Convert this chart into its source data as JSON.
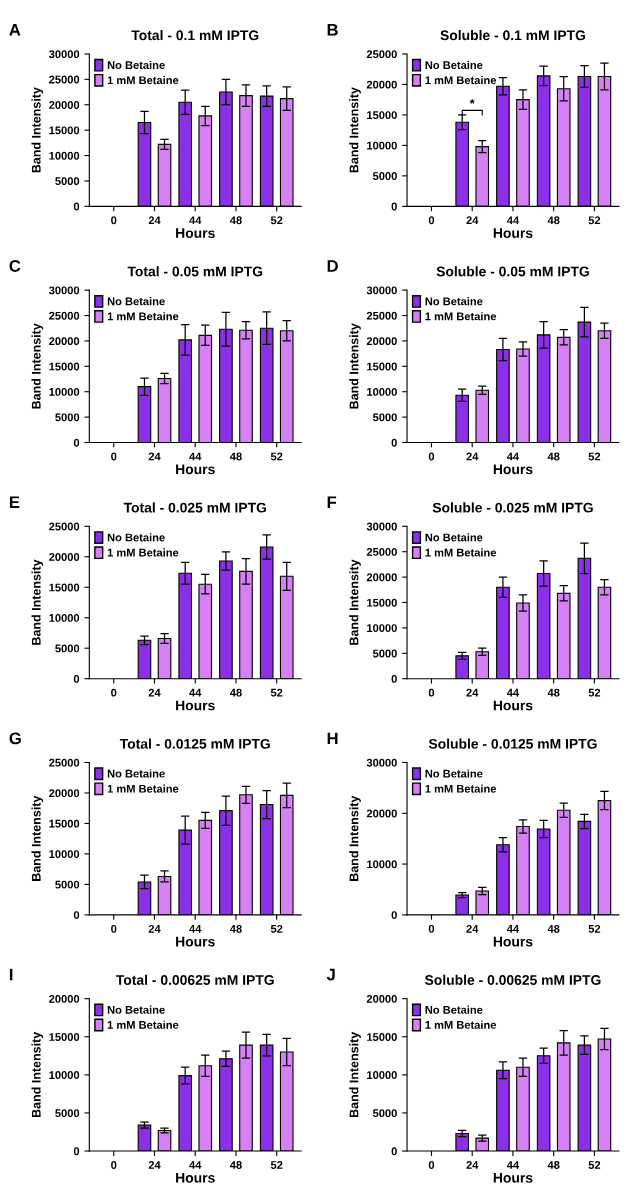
{
  "chart_data": [
    {
      "type": "bar",
      "title": "Total - 0.1 mM IPTG",
      "xlabel": "Hours",
      "ylabel": "Band Intensity",
      "annotations": [
        "A"
      ],
      "categories": [
        "0",
        "24",
        "44",
        "48",
        "52"
      ],
      "ylim": [
        0,
        30000
      ],
      "yticks": [
        0,
        5000,
        10000,
        15000,
        20000,
        25000,
        30000
      ],
      "legend": "top left",
      "grid": false,
      "series": [
        {
          "name": "No Betaine",
          "color": "#8b2fe8",
          "values": [
            null,
            16500,
            20500,
            22500,
            21700
          ],
          "errors": [
            null,
            2200,
            2400,
            2500,
            2000
          ]
        },
        {
          "name": "1 mM Betaine",
          "color": "#d580f5",
          "values": [
            null,
            12200,
            17800,
            21800,
            21200
          ],
          "errors": [
            null,
            1000,
            1900,
            2100,
            2300
          ]
        }
      ]
    },
    {
      "type": "bar",
      "title": "Soluble - 0.1 mM IPTG",
      "xlabel": "Hours",
      "ylabel": "Band Intensity",
      "annotations": [
        "B",
        "*"
      ],
      "categories": [
        "0",
        "24",
        "44",
        "48",
        "52"
      ],
      "ylim": [
        0,
        25000
      ],
      "yticks": [
        0,
        5000,
        10000,
        15000,
        20000,
        25000
      ],
      "legend": "top left",
      "grid": false,
      "series": [
        {
          "name": "No Betaine",
          "color": "#8b2fe8",
          "values": [
            null,
            13800,
            19700,
            21400,
            21300
          ],
          "errors": [
            null,
            1200,
            1400,
            1600,
            1800
          ]
        },
        {
          "name": "1 mM Betaine",
          "color": "#d580f5",
          "values": [
            null,
            9800,
            17500,
            19300,
            21300
          ],
          "errors": [
            null,
            1000,
            1600,
            2000,
            2200
          ]
        }
      ]
    },
    {
      "type": "bar",
      "title": "Total - 0.05 mM IPTG",
      "xlabel": "Hours",
      "ylabel": "Band Intensity",
      "annotations": [
        "C"
      ],
      "categories": [
        "0",
        "24",
        "44",
        "48",
        "52"
      ],
      "ylim": [
        0,
        30000
      ],
      "yticks": [
        0,
        5000,
        10000,
        15000,
        20000,
        25000,
        30000
      ],
      "legend": "top left",
      "grid": false,
      "series": [
        {
          "name": "No Betaine",
          "color": "#8b2fe8",
          "values": [
            null,
            11000,
            20200,
            22300,
            22500
          ],
          "errors": [
            null,
            1700,
            3000,
            3300,
            3200
          ]
        },
        {
          "name": "1 mM Betaine",
          "color": "#d580f5",
          "values": [
            null,
            12600,
            21100,
            22100,
            22000
          ],
          "errors": [
            null,
            1000,
            2000,
            1700,
            2000
          ]
        }
      ]
    },
    {
      "type": "bar",
      "title": "Soluble - 0.05 mM IPTG",
      "xlabel": "Hours",
      "ylabel": "Band Intensity",
      "annotations": [
        "D"
      ],
      "categories": [
        "0",
        "24",
        "44",
        "48",
        "52"
      ],
      "ylim": [
        0,
        30000
      ],
      "yticks": [
        0,
        5000,
        10000,
        15000,
        20000,
        25000,
        30000
      ],
      "legend": "top left",
      "grid": false,
      "series": [
        {
          "name": "No Betaine",
          "color": "#8b2fe8",
          "values": [
            null,
            9300,
            18300,
            21200,
            23700
          ],
          "errors": [
            null,
            1200,
            2200,
            2600,
            2900
          ]
        },
        {
          "name": "1 mM Betaine",
          "color": "#d580f5",
          "values": [
            null,
            10300,
            18400,
            20700,
            22000
          ],
          "errors": [
            null,
            800,
            1400,
            1500,
            1500
          ]
        }
      ]
    },
    {
      "type": "bar",
      "title": "Total - 0.025 mM IPTG",
      "xlabel": "Hours",
      "ylabel": "Band Intensity",
      "annotations": [
        "E"
      ],
      "categories": [
        "0",
        "24",
        "44",
        "48",
        "52"
      ],
      "ylim": [
        0,
        25000
      ],
      "yticks": [
        0,
        5000,
        10000,
        15000,
        20000,
        25000
      ],
      "legend": "top left",
      "grid": false,
      "series": [
        {
          "name": "No Betaine",
          "color": "#8b2fe8",
          "values": [
            null,
            6300,
            17300,
            19300,
            21600
          ],
          "errors": [
            null,
            700,
            1800,
            1500,
            2000
          ]
        },
        {
          "name": "1 mM Betaine",
          "color": "#d580f5",
          "values": [
            null,
            6600,
            15500,
            17600,
            16800
          ],
          "errors": [
            null,
            800,
            1600,
            2100,
            2300
          ]
        }
      ]
    },
    {
      "type": "bar",
      "title": "Soluble - 0.025 mM IPTG",
      "xlabel": "Hours",
      "ylabel": "Band Intensity",
      "annotations": [
        "F"
      ],
      "categories": [
        "0",
        "24",
        "44",
        "48",
        "52"
      ],
      "ylim": [
        0,
        30000
      ],
      "yticks": [
        0,
        5000,
        10000,
        15000,
        20000,
        25000,
        30000
      ],
      "legend": "top left",
      "grid": false,
      "series": [
        {
          "name": "No Betaine",
          "color": "#8b2fe8",
          "values": [
            null,
            4500,
            18000,
            20700,
            23700
          ],
          "errors": [
            null,
            700,
            2000,
            2500,
            3000
          ]
        },
        {
          "name": "1 mM Betaine",
          "color": "#d580f5",
          "values": [
            null,
            5300,
            14900,
            16800,
            18000
          ],
          "errors": [
            null,
            700,
            1600,
            1500,
            1500
          ]
        }
      ]
    },
    {
      "type": "bar",
      "title": "Total - 0.0125 mM IPTG",
      "xlabel": "Hours",
      "ylabel": "Band Intensity",
      "annotations": [
        "G"
      ],
      "categories": [
        "0",
        "24",
        "44",
        "48",
        "52"
      ],
      "ylim": [
        0,
        25000
      ],
      "yticks": [
        0,
        5000,
        10000,
        15000,
        20000,
        25000
      ],
      "legend": "top left",
      "grid": false,
      "series": [
        {
          "name": "No Betaine",
          "color": "#8b2fe8",
          "values": [
            null,
            5400,
            13900,
            17100,
            18100
          ],
          "errors": [
            null,
            1100,
            2300,
            2400,
            2300
          ]
        },
        {
          "name": "1 mM Betaine",
          "color": "#d580f5",
          "values": [
            null,
            6300,
            15500,
            19700,
            19600
          ],
          "errors": [
            null,
            900,
            1300,
            1400,
            2000
          ]
        }
      ]
    },
    {
      "type": "bar",
      "title": "Soluble - 0.0125 mM IPTG",
      "xlabel": "Hours",
      "ylabel": "Band Intensity",
      "annotations": [
        "H"
      ],
      "categories": [
        "0",
        "24",
        "44",
        "48",
        "52"
      ],
      "ylim": [
        0,
        30000
      ],
      "yticks": [
        0,
        10000,
        20000,
        30000
      ],
      "legend": "top left",
      "grid": false,
      "series": [
        {
          "name": "No Betaine",
          "color": "#8b2fe8",
          "values": [
            null,
            3900,
            13800,
            16900,
            18400
          ],
          "errors": [
            null,
            500,
            1400,
            1700,
            1400
          ]
        },
        {
          "name": "1 mM Betaine",
          "color": "#d580f5",
          "values": [
            null,
            4700,
            17400,
            20600,
            22500
          ],
          "errors": [
            null,
            700,
            1300,
            1400,
            1800
          ]
        }
      ]
    },
    {
      "type": "bar",
      "title": "Total - 0.00625 mM IPTG",
      "xlabel": "Hours",
      "ylabel": "Band Intensity",
      "annotations": [
        "I"
      ],
      "categories": [
        "0",
        "24",
        "44",
        "48",
        "52"
      ],
      "ylim": [
        0,
        20000
      ],
      "yticks": [
        0,
        5000,
        10000,
        15000,
        20000
      ],
      "legend": "top left",
      "grid": false,
      "series": [
        {
          "name": "No Betaine",
          "color": "#8b2fe8",
          "values": [
            null,
            3400,
            9900,
            12100,
            13900
          ],
          "errors": [
            null,
            400,
            1100,
            1000,
            1400
          ]
        },
        {
          "name": "1 mM Betaine",
          "color": "#d580f5",
          "values": [
            null,
            2700,
            11200,
            13900,
            13000
          ],
          "errors": [
            null,
            300,
            1400,
            1700,
            1800
          ]
        }
      ]
    },
    {
      "type": "bar",
      "title": "Soluble - 0.00625 mM IPTG",
      "xlabel": "Hours",
      "ylabel": "Band Intensity",
      "annotations": [
        "J"
      ],
      "categories": [
        "0",
        "24",
        "44",
        "48",
        "52"
      ],
      "ylim": [
        0,
        20000
      ],
      "yticks": [
        0,
        5000,
        10000,
        15000,
        20000
      ],
      "legend": "top left",
      "grid": false,
      "series": [
        {
          "name": "No Betaine",
          "color": "#8b2fe8",
          "values": [
            null,
            2300,
            10600,
            12500,
            13900
          ],
          "errors": [
            null,
            400,
            1100,
            1000,
            1200
          ]
        },
        {
          "name": "1 mM Betaine",
          "color": "#d580f5",
          "values": [
            null,
            1700,
            11000,
            14200,
            14700
          ],
          "errors": [
            null,
            400,
            1200,
            1600,
            1400
          ]
        }
      ]
    }
  ]
}
